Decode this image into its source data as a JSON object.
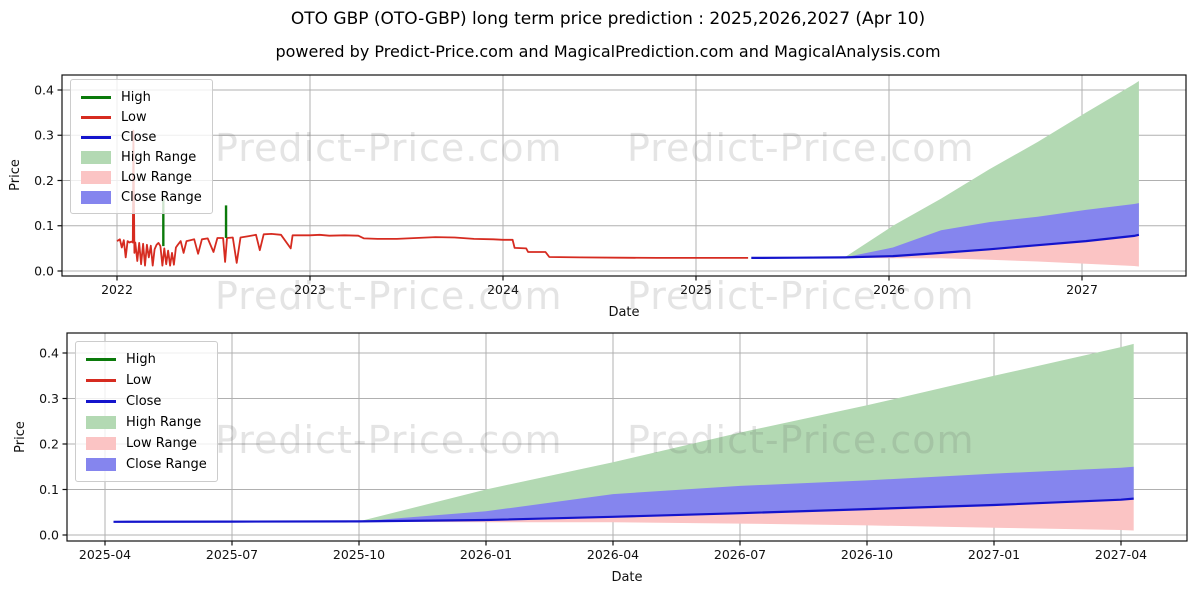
{
  "title": "OTO GBP (OTO-GBP) long term price prediction : 2025,2026,2027 (Apr 10)",
  "subtitle": "powered by Predict-Price.com and MagicalPrediction.com and MagicalAnalysis.com",
  "watermark": "Predict-Price.com",
  "legend": {
    "items": [
      {
        "label": "High",
        "swatch": "line",
        "color": "#0b7a0b"
      },
      {
        "label": "Low",
        "swatch": "line",
        "color": "#d62b20"
      },
      {
        "label": "Close",
        "swatch": "line",
        "color": "#1414cc"
      },
      {
        "label": "High Range",
        "swatch": "patch",
        "color": "#b3d9b3"
      },
      {
        "label": "Low Range",
        "swatch": "patch",
        "color": "#fbc4c4"
      },
      {
        "label": "Close Range",
        "swatch": "patch",
        "color": "#8585ee"
      }
    ]
  },
  "colors": {
    "high_line": "#0b7a0b",
    "low_line": "#d62b20",
    "close_line": "#1414cc",
    "high_range_fill": "#b3d9b3",
    "low_range_fill": "#fbc4c4",
    "close_range_fill": "#8585ee",
    "grid": "#b0b0b0",
    "frame": "#111111",
    "watermark_gray": "#e3e3e3"
  },
  "chart_data": [
    {
      "name": "full-history-with-prediction",
      "type": "line",
      "xlabel": "Date",
      "ylabel": "Price",
      "x_tick_labels": [
        "2022",
        "2023",
        "2024",
        "2025",
        "2026",
        "2027"
      ],
      "x_tick_years": [
        2022,
        2023,
        2024,
        2025,
        2026,
        2027
      ],
      "y_tick_labels": [
        "0.0",
        "0.1",
        "0.2",
        "0.3",
        "0.4"
      ],
      "y_tick_values": [
        0.0,
        0.1,
        0.2,
        0.3,
        0.4
      ],
      "ylim": [
        -0.011,
        0.433
      ],
      "grid": true,
      "legend_position": "upper left",
      "note": "Red Low/Close history 2022 to 2025-04; prediction bands are identical to the detail chart and read from chart_data[1].prediction",
      "history_low_close": [
        [
          2022.0,
          0.066
        ],
        [
          2022.015,
          0.07
        ],
        [
          2022.025,
          0.052
        ],
        [
          2022.035,
          0.068
        ],
        [
          2022.045,
          0.03
        ],
        [
          2022.055,
          0.066
        ],
        [
          2022.065,
          0.063
        ],
        [
          2022.075,
          0.065
        ],
        [
          2022.082,
          0.063
        ],
        [
          2022.085,
          0.31
        ],
        [
          2022.09,
          0.04
        ],
        [
          2022.095,
          0.063
        ],
        [
          2022.105,
          0.022
        ],
        [
          2022.115,
          0.062
        ],
        [
          2022.125,
          0.015
        ],
        [
          2022.135,
          0.06
        ],
        [
          2022.145,
          0.012
        ],
        [
          2022.155,
          0.058
        ],
        [
          2022.165,
          0.03
        ],
        [
          2022.175,
          0.056
        ],
        [
          2022.185,
          0.012
        ],
        [
          2022.195,
          0.048
        ],
        [
          2022.205,
          0.058
        ],
        [
          2022.215,
          0.062
        ],
        [
          2022.225,
          0.055
        ],
        [
          2022.235,
          0.012
        ],
        [
          2022.245,
          0.05
        ],
        [
          2022.255,
          0.015
        ],
        [
          2022.265,
          0.045
        ],
        [
          2022.275,
          0.012
        ],
        [
          2022.285,
          0.04
        ],
        [
          2022.295,
          0.014
        ],
        [
          2022.305,
          0.052
        ],
        [
          2022.315,
          0.058
        ],
        [
          2022.33,
          0.066
        ],
        [
          2022.345,
          0.04
        ],
        [
          2022.36,
          0.066
        ],
        [
          2022.38,
          0.068
        ],
        [
          2022.4,
          0.07
        ],
        [
          2022.42,
          0.038
        ],
        [
          2022.44,
          0.07
        ],
        [
          2022.47,
          0.072
        ],
        [
          2022.5,
          0.042
        ],
        [
          2022.52,
          0.073
        ],
        [
          2022.55,
          0.073
        ],
        [
          2022.56,
          0.02
        ],
        [
          2022.57,
          0.073
        ],
        [
          2022.6,
          0.074
        ],
        [
          2022.62,
          0.018
        ],
        [
          2022.64,
          0.074
        ],
        [
          2022.68,
          0.077
        ],
        [
          2022.72,
          0.08
        ],
        [
          2022.74,
          0.046
        ],
        [
          2022.76,
          0.081
        ],
        [
          2022.8,
          0.082
        ],
        [
          2022.85,
          0.08
        ],
        [
          2022.9,
          0.05
        ],
        [
          2022.91,
          0.079
        ],
        [
          2023.0,
          0.079
        ],
        [
          2023.05,
          0.08
        ],
        [
          2023.1,
          0.078
        ],
        [
          2023.18,
          0.079
        ],
        [
          2023.25,
          0.078
        ],
        [
          2023.28,
          0.072
        ],
        [
          2023.35,
          0.071
        ],
        [
          2023.45,
          0.071
        ],
        [
          2023.55,
          0.073
        ],
        [
          2023.65,
          0.075
        ],
        [
          2023.75,
          0.074
        ],
        [
          2023.85,
          0.071
        ],
        [
          2023.95,
          0.07
        ],
        [
          2024.0,
          0.069
        ],
        [
          2024.05,
          0.069
        ],
        [
          2024.06,
          0.051
        ],
        [
          2024.12,
          0.05
        ],
        [
          2024.13,
          0.042
        ],
        [
          2024.22,
          0.042
        ],
        [
          2024.24,
          0.031
        ],
        [
          2024.4,
          0.03
        ],
        [
          2024.6,
          0.0295
        ],
        [
          2024.8,
          0.029
        ],
        [
          2025.0,
          0.029
        ],
        [
          2025.27,
          0.029
        ]
      ],
      "high_spikes": [
        {
          "x": 2022.24,
          "base": 0.055,
          "top": 0.16
        },
        {
          "x": 2022.565,
          "base": 0.073,
          "top": 0.145
        }
      ],
      "low_spike_2022_02_top": 0.31
    },
    {
      "name": "prediction-detail",
      "type": "line",
      "xlabel": "Date",
      "ylabel": "Price",
      "x_tick_labels": [
        "2025-04",
        "2025-07",
        "2025-10",
        "2026-01",
        "2026-04",
        "2026-07",
        "2026-10",
        "2027-01",
        "2027-04"
      ],
      "x_tick_months": [
        0,
        3,
        6,
        9,
        12,
        15,
        18,
        21,
        24
      ],
      "y_tick_labels": [
        "0.0",
        "0.1",
        "0.2",
        "0.3",
        "0.4"
      ],
      "y_tick_values": [
        0.0,
        0.1,
        0.2,
        0.3,
        0.4
      ],
      "ylim": [
        -0.013,
        0.444
      ],
      "grid": true,
      "legend_position": "upper left",
      "prediction": {
        "x_unit": "months since 2025-04",
        "close": [
          [
            0.2,
            0.029
          ],
          [
            3,
            0.0295
          ],
          [
            6,
            0.03
          ],
          [
            9,
            0.033
          ],
          [
            12,
            0.04
          ],
          [
            15,
            0.048
          ],
          [
            18,
            0.057
          ],
          [
            21,
            0.066
          ],
          [
            24,
            0.0775
          ],
          [
            24.3,
            0.08
          ]
        ],
        "high_range_upper": [
          [
            6,
            0.03
          ],
          [
            9,
            0.1
          ],
          [
            12,
            0.16
          ],
          [
            15,
            0.225
          ],
          [
            18,
            0.285
          ],
          [
            21,
            0.35
          ],
          [
            24,
            0.413
          ],
          [
            24.3,
            0.42
          ]
        ],
        "close_range_upper": [
          [
            6,
            0.03
          ],
          [
            9,
            0.052
          ],
          [
            12,
            0.09
          ],
          [
            15,
            0.108
          ],
          [
            18,
            0.12
          ],
          [
            21,
            0.135
          ],
          [
            24,
            0.148
          ],
          [
            24.3,
            0.15
          ]
        ],
        "low_range_lower": [
          [
            6,
            0.029
          ],
          [
            9,
            0.028
          ],
          [
            12,
            0.028
          ],
          [
            15,
            0.025
          ],
          [
            18,
            0.021
          ],
          [
            21,
            0.016
          ],
          [
            24,
            0.011
          ],
          [
            24.3,
            0.01
          ]
        ]
      }
    }
  ]
}
